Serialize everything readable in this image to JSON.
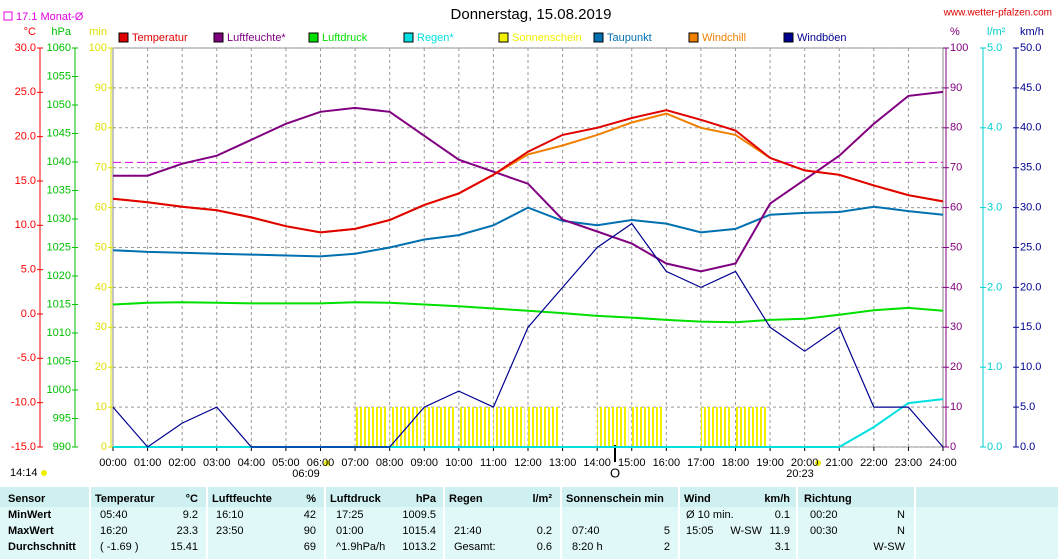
{
  "chart_data": {
    "type": "line",
    "title": "Donnerstag, 15.08.2019",
    "source": "www.wetter-pfalzen.com",
    "monthly_avg": {
      "value": 17.1,
      "label": "17.1 Monat-Ø"
    },
    "grid": true,
    "x": [
      "00:00",
      "01:00",
      "02:00",
      "03:00",
      "04:00",
      "05:00",
      "06:00",
      "07:00",
      "08:00",
      "09:00",
      "10:00",
      "11:00",
      "12:00",
      "13:00",
      "14:00",
      "15:00",
      "16:00",
      "17:00",
      "18:00",
      "19:00",
      "20:00",
      "21:00",
      "22:00",
      "23:00",
      "24:00"
    ],
    "annotations": {
      "daylength": "14:14",
      "sunrise": "06:09",
      "sunset": "20:23",
      "noon": "O"
    },
    "axes": {
      "celsius": {
        "label": "°C",
        "color": "#ff0000",
        "lim": [
          -15,
          30
        ],
        "ticks": [
          {
            "value": -15,
            "label": "-15.0"
          },
          {
            "value": -10,
            "label": "-10.0"
          },
          {
            "value": -5,
            "label": "-5.0"
          },
          {
            "value": 0,
            "label": "0.0"
          },
          {
            "value": 5,
            "label": "5.0"
          },
          {
            "value": 10,
            "label": "10.0"
          },
          {
            "value": 15,
            "label": "15.0"
          },
          {
            "value": 20,
            "label": "20.0"
          },
          {
            "value": 25,
            "label": "25.0"
          },
          {
            "value": 30,
            "label": "30.0"
          }
        ]
      },
      "hpa": {
        "label": "hPa",
        "color": "#00c000",
        "lim": [
          990,
          1060
        ],
        "ticks": [
          990,
          995,
          1000,
          1005,
          1010,
          1015,
          1020,
          1025,
          1030,
          1035,
          1040,
          1045,
          1050,
          1055,
          1060
        ]
      },
      "min": {
        "label": "min",
        "color": "#e0e000",
        "lim": [
          0,
          100
        ],
        "ticks": [
          0,
          10,
          20,
          30,
          40,
          50,
          60,
          70,
          80,
          90,
          100
        ]
      },
      "pct": {
        "label": "%",
        "color": "#800080",
        "lim": [
          0,
          100
        ],
        "ticks": [
          0,
          10,
          20,
          30,
          40,
          50,
          60,
          70,
          80,
          90,
          100
        ]
      },
      "rain": {
        "label": "l/m²",
        "color": "#00d0d0",
        "lim": [
          0,
          5
        ],
        "ticks": [
          {
            "value": 0,
            "label": "0.0"
          },
          {
            "value": 1,
            "label": "1.0"
          },
          {
            "value": 2,
            "label": "2.0"
          },
          {
            "value": 3,
            "label": "3.0"
          },
          {
            "value": 4,
            "label": "4.0"
          },
          {
            "value": 5,
            "label": "5.0"
          }
        ]
      },
      "kmh": {
        "label": "km/h",
        "color": "#000090",
        "lim": [
          0,
          50
        ],
        "ticks": [
          {
            "value": 0,
            "label": "0.0"
          },
          {
            "value": 5,
            "label": "5.0"
          },
          {
            "value": 10,
            "label": "10.0"
          },
          {
            "value": 15,
            "label": "15.0"
          },
          {
            "value": 20,
            "label": "20.0"
          },
          {
            "value": 25,
            "label": "25.0"
          },
          {
            "value": 30,
            "label": "30.0"
          },
          {
            "value": 35,
            "label": "35.0"
          },
          {
            "value": 40,
            "label": "40.0"
          },
          {
            "value": 45,
            "label": "45.0"
          },
          {
            "value": 50,
            "label": "50.0"
          }
        ]
      }
    },
    "series": [
      {
        "name": "Temperatur",
        "color": "#e00000",
        "type": "line",
        "axis": "celsius",
        "values": [
          13.0,
          12.6,
          12.1,
          11.7,
          10.9,
          9.9,
          9.2,
          9.6,
          10.6,
          12.3,
          13.6,
          15.7,
          18.3,
          20.2,
          21.0,
          22.1,
          23.0,
          21.9,
          20.7,
          17.6,
          16.2,
          15.7,
          14.5,
          13.4,
          12.7
        ]
      },
      {
        "name": "Luftfeuchte*",
        "color": "#800080",
        "type": "line",
        "axis": "pct",
        "values": [
          68,
          68,
          71,
          73,
          77,
          81,
          84,
          85,
          84,
          78,
          72,
          69,
          66,
          57,
          54,
          51,
          46,
          44,
          46,
          61,
          67,
          73,
          81,
          88,
          89
        ]
      },
      {
        "name": "Luftdruck",
        "color": "#00e000",
        "type": "line",
        "axis": "hpa",
        "values": [
          1015.0,
          1015.3,
          1015.4,
          1015.3,
          1015.2,
          1015.2,
          1015.2,
          1015.4,
          1015.3,
          1015.0,
          1014.7,
          1014.3,
          1013.9,
          1013.5,
          1013.0,
          1012.7,
          1012.3,
          1012.0,
          1011.9,
          1012.3,
          1012.5,
          1013.2,
          1014.0,
          1014.4,
          1013.9
        ]
      },
      {
        "name": "Regen*",
        "color": "#00e0e0",
        "type": "line",
        "axis": "rain",
        "values": [
          0,
          0,
          0,
          0,
          0,
          0,
          0,
          0,
          0,
          0,
          0,
          0,
          0,
          0,
          0,
          0,
          0,
          0,
          0,
          0,
          0,
          0,
          0.25,
          0.55,
          0.6
        ]
      },
      {
        "name": "Sonnenschein",
        "color": "#f0f000",
        "type": "bar",
        "axis": "min",
        "values": [
          0,
          0,
          0,
          0,
          0,
          0,
          0,
          10,
          10,
          10,
          10,
          10,
          10,
          0,
          10,
          10,
          0,
          10,
          10,
          0,
          0,
          0,
          0,
          0,
          0
        ]
      },
      {
        "name": "Taupunkt",
        "color": "#0070b0",
        "type": "line",
        "axis": "celsius",
        "values": [
          7.2,
          7.0,
          6.9,
          6.8,
          6.7,
          6.6,
          6.5,
          6.8,
          7.5,
          8.4,
          8.9,
          10.0,
          12.0,
          10.5,
          10.0,
          10.6,
          10.2,
          9.2,
          9.6,
          11.2,
          11.4,
          11.5,
          12.1,
          11.6,
          11.2
        ]
      },
      {
        "name": "Windchill",
        "color": "#f08000",
        "type": "line",
        "axis": "celsius",
        "values": [
          13.0,
          12.6,
          12.1,
          11.7,
          10.9,
          9.9,
          9.2,
          9.6,
          10.6,
          12.3,
          13.6,
          15.7,
          18.0,
          19.0,
          20.2,
          21.6,
          22.6,
          21.0,
          20.2,
          17.6,
          16.2,
          15.7,
          14.5,
          13.4,
          12.7
        ]
      },
      {
        "name": "Windböen",
        "color": "#000090",
        "type": "line",
        "axis": "kmh",
        "values": [
          5,
          0,
          3,
          5,
          0,
          0,
          0,
          0,
          0,
          5,
          7,
          5,
          15,
          20,
          25,
          28,
          22,
          20,
          22,
          15,
          12,
          15,
          5,
          5,
          0
        ]
      }
    ]
  },
  "table": {
    "header": {
      "sensor": "Sensor",
      "temp": "Temperatur",
      "temp_unit": "°C",
      "hum": "Luftfeuchte",
      "hum_unit": "%",
      "press": "Luftdruck",
      "press_unit": "hPa",
      "rain": "Regen",
      "rain_unit": "l/m²",
      "sun": "Sonnenschein min",
      "wind": "Wind",
      "wind_unit": "km/h",
      "dir": "Richtung"
    },
    "rows": [
      {
        "label": "MinWert",
        "temp_time": "05:40",
        "temp": "9.2",
        "hum_time": "16:10",
        "hum": "42",
        "press_time": "17:25",
        "press": "1009.5",
        "wind_time": "Ø 10 min.",
        "wind": "0.1",
        "dir_time": "00:20",
        "dir": "N"
      },
      {
        "label": "MaxWert",
        "temp_time": "16:20",
        "temp": "23.3",
        "hum_time": "23:50",
        "hum": "90",
        "press_time": "01:00",
        "press": "1015.4",
        "rain_time": "21:40",
        "rain": "0.2",
        "sun_time": "07:40",
        "sun": "5",
        "wind_time": "15:05",
        "wind_dir": "W-SW",
        "wind": "11.9",
        "dir_time": "00:30",
        "dir": "N"
      },
      {
        "label": "Durchschnitt",
        "temp_time": "( -1.69 )",
        "temp": "15.41",
        "hum": "69",
        "press_time": "^1.9hPa/h",
        "press": "1013.2",
        "rain_time": "Gesamt:",
        "rain": "0.6",
        "sun_time": "8:20 h",
        "sun": "2",
        "wind": "3.1",
        "dir": "W-SW"
      }
    ]
  }
}
